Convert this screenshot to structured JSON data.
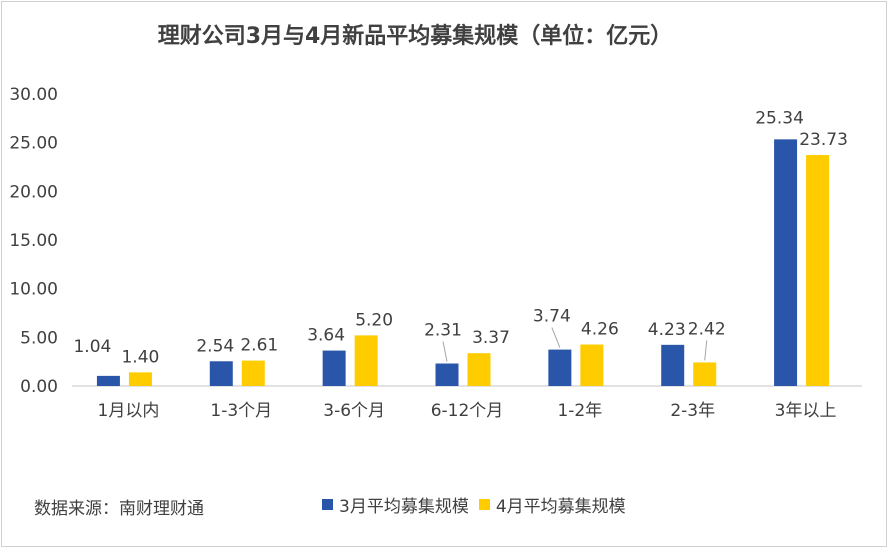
{
  "chart_data": {
    "type": "bar",
    "title": "理财公司3月与4月新品平均募集规模（单位：亿元）",
    "categories": [
      "1月以内",
      "1-3个月",
      "3-6个月",
      "6-12个月",
      "1-2年",
      "2-3年",
      "3年以上"
    ],
    "series": [
      {
        "name": "3月平均募集规模",
        "values": [
          1.04,
          2.54,
          3.64,
          2.31,
          3.74,
          4.23,
          25.34
        ],
        "color": "#2a56aa",
        "labels": [
          "1.04",
          "2.54",
          "3.64",
          "2.31",
          "3.74",
          "4.23",
          "25.34"
        ]
      },
      {
        "name": "4月平均募集规模",
        "values": [
          1.4,
          2.61,
          5.2,
          3.37,
          4.26,
          2.42,
          23.73
        ],
        "color": "#ffcc00",
        "labels": [
          "1.40",
          "2.61",
          "5.20",
          "3.37",
          "4.26",
          "2.42",
          "23.73"
        ]
      }
    ],
    "ylim": [
      0,
      30
    ],
    "yticks": [
      "0.00",
      "5.00",
      "10.00",
      "15.00",
      "20.00",
      "25.00",
      "30.00"
    ],
    "grid": false,
    "legend_position": "bottom"
  },
  "source": "数据来源：南财理财通",
  "colors": {
    "axis": "#d9d9d9",
    "text": "#404040",
    "leader": "#a6a6a6"
  }
}
